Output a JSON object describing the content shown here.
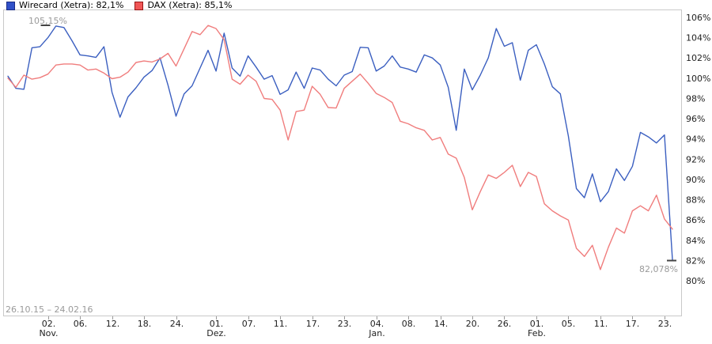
{
  "legend": {
    "items": [
      {
        "name": "Wirecard (Xetra)",
        "label": "Wirecard (Xetra): 82,1%",
        "color": "#3b5fc0",
        "swatch_fill": "#3050c8",
        "swatch_border": "#1a2c85"
      },
      {
        "name": "DAX (Xetra)",
        "label": "DAX (Xetra): 85,1%",
        "color": "#f07d7d",
        "swatch_fill": "#f05656",
        "swatch_border": "#971616"
      }
    ]
  },
  "annotations": {
    "date_range": "26.10.15 – 24.02.16"
  },
  "chart_data": {
    "type": "line",
    "title": "",
    "xlabel": "",
    "ylabel": "",
    "grid": false,
    "legend_position": "top-left",
    "y_axis": {
      "min": 80,
      "max": 106,
      "unit": "%",
      "ticks": [
        106,
        104,
        102,
        100,
        98,
        96,
        94,
        92,
        90,
        88,
        86,
        84,
        82,
        80
      ],
      "side": "right"
    },
    "x_axis": {
      "start": "26.10.15",
      "end": "24.02.16",
      "tick_labels": [
        {
          "index": 5,
          "label": "02.",
          "month": "Nov."
        },
        {
          "index": 9,
          "label": "06."
        },
        {
          "index": 13,
          "label": "12."
        },
        {
          "index": 17,
          "label": "18."
        },
        {
          "index": 21,
          "label": "24."
        },
        {
          "index": 26,
          "label": "01.",
          "month": "Dez."
        },
        {
          "index": 30,
          "label": "07."
        },
        {
          "index": 34,
          "label": "11."
        },
        {
          "index": 38,
          "label": "17."
        },
        {
          "index": 42,
          "label": "23."
        },
        {
          "index": 46,
          "label": "04.",
          "month": "Jan."
        },
        {
          "index": 50,
          "label": "08."
        },
        {
          "index": 54,
          "label": "14."
        },
        {
          "index": 58,
          "label": "20."
        },
        {
          "index": 62,
          "label": "26."
        },
        {
          "index": 66,
          "label": "01.",
          "month": "Feb."
        },
        {
          "index": 70,
          "label": "05."
        },
        {
          "index": 74,
          "label": "11."
        },
        {
          "index": 78,
          "label": "17."
        },
        {
          "index": 82,
          "label": "23."
        }
      ]
    },
    "dates": [
      "26.10.15",
      "27.10.15",
      "28.10.15",
      "29.10.15",
      "30.10.15",
      "02.11.15",
      "03.11.15",
      "04.11.15",
      "05.11.15",
      "06.11.15",
      "09.11.15",
      "10.11.15",
      "11.11.15",
      "12.11.15",
      "13.11.15",
      "16.11.15",
      "17.11.15",
      "18.11.15",
      "19.11.15",
      "20.11.15",
      "23.11.15",
      "24.11.15",
      "25.11.15",
      "26.11.15",
      "27.11.15",
      "30.11.15",
      "01.12.15",
      "02.12.15",
      "03.12.15",
      "04.12.15",
      "07.12.15",
      "08.12.15",
      "09.12.15",
      "10.12.15",
      "11.12.15",
      "14.12.15",
      "15.12.15",
      "16.12.15",
      "17.12.15",
      "18.12.15",
      "21.12.15",
      "22.12.15",
      "23.12.15",
      "28.12.15",
      "29.12.15",
      "30.12.15",
      "04.01.16",
      "05.01.16",
      "06.01.16",
      "07.01.16",
      "08.01.16",
      "11.01.16",
      "12.01.16",
      "13.01.16",
      "14.01.16",
      "15.01.16",
      "18.01.16",
      "19.01.16",
      "20.01.16",
      "21.01.16",
      "22.01.16",
      "25.01.16",
      "26.01.16",
      "27.01.16",
      "28.01.16",
      "29.01.16",
      "01.02.16",
      "02.02.16",
      "03.02.16",
      "04.02.16",
      "05.02.16",
      "08.02.16",
      "09.02.16",
      "10.02.16",
      "11.02.16",
      "12.02.16",
      "15.02.16",
      "16.02.16",
      "17.02.16",
      "18.02.16",
      "19.02.16",
      "22.02.16",
      "23.02.16",
      "24.02.16"
    ],
    "series": [
      {
        "name": "Wirecard (Xetra)",
        "color": "#3b5fc0",
        "final_pct": "82,1%",
        "values": [
          100.2,
          99.0,
          98.9,
          103.0,
          103.1,
          104.0,
          105.15,
          105.0,
          103.7,
          102.3,
          102.2,
          102.05,
          103.1,
          98.6,
          96.15,
          98.15,
          99.05,
          100.1,
          100.75,
          102.0,
          99.3,
          96.25,
          98.45,
          99.25,
          101.0,
          102.75,
          100.7,
          104.45,
          101.0,
          100.2,
          102.2,
          101.1,
          99.9,
          100.25,
          98.4,
          98.85,
          100.6,
          99.0,
          101.0,
          100.8,
          99.9,
          99.25,
          100.3,
          100.65,
          103.05,
          103.0,
          100.7,
          101.2,
          102.2,
          101.1,
          100.9,
          100.6,
          102.3,
          102.0,
          101.3,
          99.1,
          94.85,
          100.9,
          98.85,
          100.3,
          102.0,
          104.9,
          103.15,
          103.5,
          99.8,
          102.75,
          103.3,
          101.4,
          99.15,
          98.45,
          94.3,
          89.1,
          88.2,
          90.55,
          87.8,
          88.8,
          91.05,
          89.9,
          91.3,
          94.65,
          94.2,
          93.6,
          94.4,
          82.078
        ]
      },
      {
        "name": "DAX (Xetra)",
        "color": "#f07d7d",
        "final_pct": "85,1%",
        "values": [
          100.0,
          99.1,
          100.3,
          99.9,
          100.05,
          100.4,
          101.3,
          101.4,
          101.4,
          101.3,
          100.8,
          100.9,
          100.5,
          99.95,
          100.1,
          100.6,
          101.55,
          101.7,
          101.6,
          101.9,
          102.45,
          101.2,
          102.9,
          104.6,
          104.3,
          105.2,
          104.9,
          103.8,
          99.9,
          99.4,
          100.3,
          99.7,
          98.0,
          97.9,
          96.85,
          93.9,
          96.7,
          96.85,
          99.2,
          98.4,
          97.1,
          97.05,
          99.0,
          99.7,
          100.4,
          99.5,
          98.5,
          98.1,
          97.6,
          95.75,
          95.5,
          95.1,
          94.85,
          93.9,
          94.15,
          92.5,
          92.1,
          90.2,
          87.0,
          88.8,
          90.45,
          90.1,
          90.7,
          91.4,
          89.3,
          90.7,
          90.3,
          87.6,
          86.9,
          86.4,
          86.0,
          83.2,
          82.4,
          83.5,
          81.1,
          83.3,
          85.2,
          84.7,
          86.9,
          87.4,
          86.9,
          88.45,
          86.1,
          85.1
        ]
      }
    ],
    "markers": {
      "high": {
        "series": 0,
        "index": 6,
        "value": 105.15,
        "label": "105,15%"
      },
      "last": {
        "series": 0,
        "index": 83,
        "value": 82.078,
        "label": "82,078%"
      }
    }
  }
}
